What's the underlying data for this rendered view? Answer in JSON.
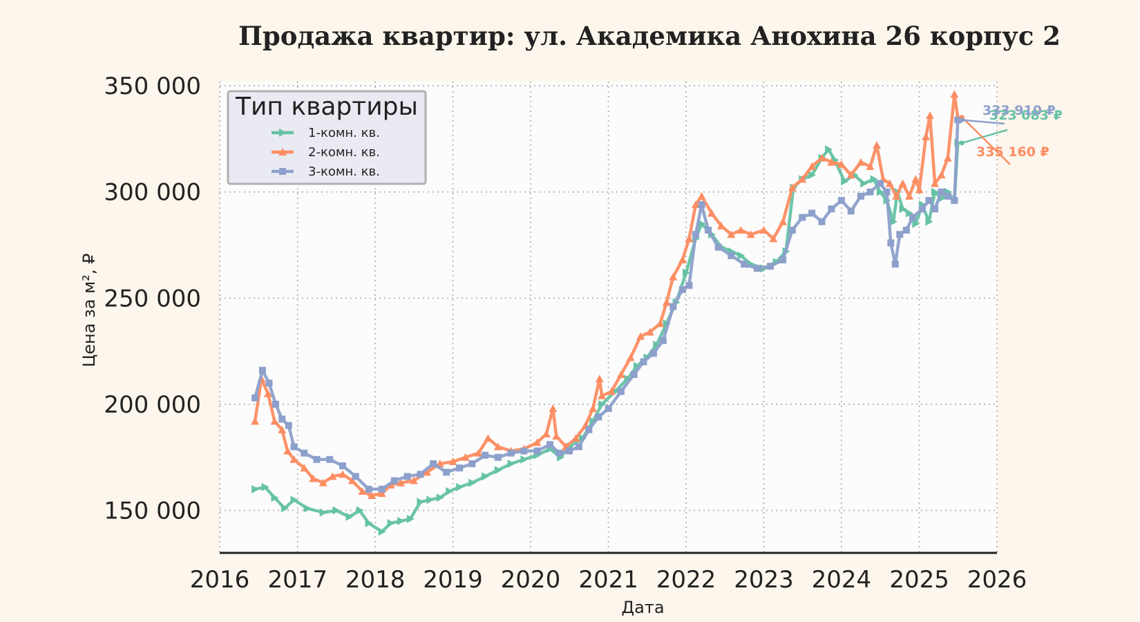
{
  "chart_data": {
    "type": "line",
    "title": "Продажа квартир: ул. Академика Анохина 26 корпус 2",
    "xlabel": "Дата",
    "ylabel": "Цена за м², ₽",
    "xlim": [
      "2016-01-01",
      "2026-01-01"
    ],
    "ylim": [
      130000,
      352000
    ],
    "xticks": [
      "2016",
      "2017",
      "2018",
      "2019",
      "2020",
      "2021",
      "2022",
      "2023",
      "2024",
      "2025",
      "2026"
    ],
    "yticks": [
      150000,
      200000,
      250000,
      300000,
      350000
    ],
    "ytick_labels": [
      "150 000",
      "200 000",
      "250 000",
      "300 000",
      "350 000"
    ],
    "grid": true,
    "legend": {
      "title": "Тип квартиры",
      "placement": "top-left"
    },
    "series": [
      {
        "name": "1-комн. кв.",
        "color": "#66c2a5",
        "marker": "triangle-right",
        "last_label": "323 083 ₽",
        "points": [
          [
            "2016-06-15",
            160000
          ],
          [
            "2016-08-01",
            161000
          ],
          [
            "2016-09-15",
            156000
          ],
          [
            "2016-11-01",
            151000
          ],
          [
            "2016-12-15",
            155000
          ],
          [
            "2017-02-15",
            151000
          ],
          [
            "2017-05-01",
            149000
          ],
          [
            "2017-07-01",
            150000
          ],
          [
            "2017-09-01",
            147000
          ],
          [
            "2017-10-20",
            150000
          ],
          [
            "2017-12-01",
            144000
          ],
          [
            "2018-02-01",
            140000
          ],
          [
            "2018-03-15",
            144000
          ],
          [
            "2018-05-01",
            145000
          ],
          [
            "2018-06-15",
            146000
          ],
          [
            "2018-08-01",
            154000
          ],
          [
            "2018-09-15",
            155000
          ],
          [
            "2018-11-01",
            156000
          ],
          [
            "2018-12-15",
            159000
          ],
          [
            "2019-02-01",
            161000
          ],
          [
            "2019-04-01",
            163000
          ],
          [
            "2019-06-01",
            166000
          ],
          [
            "2019-08-01",
            169000
          ],
          [
            "2019-10-01",
            172000
          ],
          [
            "2019-12-01",
            174000
          ],
          [
            "2020-02-01",
            176000
          ],
          [
            "2020-04-01",
            179000
          ],
          [
            "2020-05-20",
            175000
          ],
          [
            "2020-07-01",
            180000
          ],
          [
            "2020-09-01",
            184000
          ],
          [
            "2020-10-20",
            192000
          ],
          [
            "2020-12-01",
            200000
          ],
          [
            "2021-02-01",
            206000
          ],
          [
            "2021-04-01",
            212000
          ],
          [
            "2021-05-15",
            218000
          ],
          [
            "2021-07-01",
            222000
          ],
          [
            "2021-08-15",
            228000
          ],
          [
            "2021-10-01",
            238000
          ],
          [
            "2021-11-15",
            248000
          ],
          [
            "2022-01-01",
            262000
          ],
          [
            "2022-02-15",
            278000
          ],
          [
            "2022-03-15",
            285000
          ],
          [
            "2022-05-01",
            280000
          ],
          [
            "2022-06-15",
            274000
          ],
          [
            "2022-08-01",
            272000
          ],
          [
            "2022-09-15",
            270000
          ],
          [
            "2022-11-01",
            266000
          ],
          [
            "2023-01-01",
            264000
          ],
          [
            "2023-03-01",
            267000
          ],
          [
            "2023-04-15",
            272000
          ],
          [
            "2023-05-20",
            302000
          ],
          [
            "2023-07-01",
            306000
          ],
          [
            "2023-08-15",
            308000
          ],
          [
            "2023-10-01",
            316000
          ],
          [
            "2023-11-01",
            320000
          ],
          [
            "2023-12-01",
            315000
          ],
          [
            "2024-01-15",
            305000
          ],
          [
            "2024-03-01",
            308000
          ],
          [
            "2024-04-15",
            304000
          ],
          [
            "2024-06-01",
            306000
          ],
          [
            "2024-07-01",
            300000
          ],
          [
            "2024-08-01",
            296000
          ],
          [
            "2024-09-01",
            286000
          ],
          [
            "2024-09-20",
            300000
          ],
          [
            "2024-10-15",
            292000
          ],
          [
            "2024-11-15",
            290000
          ],
          [
            "2024-12-15",
            285000
          ],
          [
            "2025-01-15",
            294000
          ],
          [
            "2025-02-15",
            286000
          ],
          [
            "2025-03-15",
            300000
          ],
          [
            "2025-04-15",
            297000
          ],
          [
            "2025-05-15",
            300000
          ],
          [
            "2025-06-15",
            296000
          ],
          [
            "2025-07-01",
            323083
          ]
        ]
      },
      {
        "name": "2-комн. кв.",
        "color": "#fc8d62",
        "marker": "triangle-up",
        "last_label": "335 160 ₽",
        "points": [
          [
            "2016-06-15",
            192000
          ],
          [
            "2016-07-15",
            212000
          ],
          [
            "2016-08-15",
            205000
          ],
          [
            "2016-09-15",
            192000
          ],
          [
            "2016-10-20",
            188000
          ],
          [
            "2016-11-15",
            178000
          ],
          [
            "2016-12-15",
            174000
          ],
          [
            "2017-02-01",
            170000
          ],
          [
            "2017-03-15",
            165000
          ],
          [
            "2017-05-01",
            163000
          ],
          [
            "2017-06-15",
            166000
          ],
          [
            "2017-08-01",
            167000
          ],
          [
            "2017-09-15",
            164000
          ],
          [
            "2017-11-01",
            159000
          ],
          [
            "2017-12-15",
            157000
          ],
          [
            "2018-02-01",
            158000
          ],
          [
            "2018-03-15",
            162000
          ],
          [
            "2018-05-01",
            163000
          ],
          [
            "2018-07-01",
            164000
          ],
          [
            "2018-09-01",
            168000
          ],
          [
            "2018-11-01",
            172000
          ],
          [
            "2019-01-01",
            173000
          ],
          [
            "2019-03-01",
            175000
          ],
          [
            "2019-05-01",
            177000
          ],
          [
            "2019-06-15",
            184000
          ],
          [
            "2019-08-01",
            180000
          ],
          [
            "2019-10-01",
            178000
          ],
          [
            "2019-12-01",
            179000
          ],
          [
            "2020-02-01",
            182000
          ],
          [
            "2020-03-15",
            186000
          ],
          [
            "2020-04-15",
            198000
          ],
          [
            "2020-05-01",
            185000
          ],
          [
            "2020-06-15",
            180000
          ],
          [
            "2020-08-01",
            184000
          ],
          [
            "2020-09-15",
            190000
          ],
          [
            "2020-10-20",
            198000
          ],
          [
            "2020-11-20",
            212000
          ],
          [
            "2020-12-01",
            204000
          ],
          [
            "2021-01-15",
            206000
          ],
          [
            "2021-03-01",
            214000
          ],
          [
            "2021-04-15",
            222000
          ],
          [
            "2021-06-01",
            232000
          ],
          [
            "2021-07-15",
            234000
          ],
          [
            "2021-09-01",
            238000
          ],
          [
            "2021-10-01",
            248000
          ],
          [
            "2021-11-01",
            260000
          ],
          [
            "2021-12-15",
            268000
          ],
          [
            "2022-01-15",
            278000
          ],
          [
            "2022-02-15",
            294000
          ],
          [
            "2022-03-15",
            298000
          ],
          [
            "2022-05-01",
            290000
          ],
          [
            "2022-06-15",
            284000
          ],
          [
            "2022-08-01",
            280000
          ],
          [
            "2022-09-15",
            282000
          ],
          [
            "2022-11-01",
            280000
          ],
          [
            "2023-01-01",
            282000
          ],
          [
            "2023-02-15",
            278000
          ],
          [
            "2023-04-01",
            286000
          ],
          [
            "2023-05-15",
            302000
          ],
          [
            "2023-07-01",
            306000
          ],
          [
            "2023-08-15",
            312000
          ],
          [
            "2023-10-01",
            316000
          ],
          [
            "2023-11-15",
            314000
          ],
          [
            "2024-01-01",
            313000
          ],
          [
            "2024-02-15",
            308000
          ],
          [
            "2024-04-01",
            314000
          ],
          [
            "2024-05-15",
            312000
          ],
          [
            "2024-06-15",
            322000
          ],
          [
            "2024-07-15",
            306000
          ],
          [
            "2024-08-15",
            304000
          ],
          [
            "2024-09-15",
            298000
          ],
          [
            "2024-10-15",
            304000
          ],
          [
            "2024-11-15",
            298000
          ],
          [
            "2024-12-15",
            306000
          ],
          [
            "2025-01-01",
            301000
          ],
          [
            "2025-02-01",
            326000
          ],
          [
            "2025-02-20",
            336000
          ],
          [
            "2025-03-15",
            304000
          ],
          [
            "2025-04-15",
            308000
          ],
          [
            "2025-05-15",
            316000
          ],
          [
            "2025-06-15",
            346000
          ],
          [
            "2025-07-01",
            335160
          ]
        ]
      },
      {
        "name": "3-комн. кв.",
        "color": "#8da0cb",
        "marker": "square",
        "last_label": "333 910 ₽",
        "points": [
          [
            "2016-06-15",
            203000
          ],
          [
            "2016-07-20",
            216000
          ],
          [
            "2016-08-20",
            210000
          ],
          [
            "2016-09-20",
            200000
          ],
          [
            "2016-10-20",
            193000
          ],
          [
            "2016-11-20",
            190000
          ],
          [
            "2016-12-15",
            180000
          ],
          [
            "2017-02-01",
            177000
          ],
          [
            "2017-04-01",
            174000
          ],
          [
            "2017-06-01",
            174000
          ],
          [
            "2017-08-01",
            171000
          ],
          [
            "2017-10-01",
            166000
          ],
          [
            "2017-12-01",
            160000
          ],
          [
            "2018-02-01",
            160000
          ],
          [
            "2018-04-01",
            164000
          ],
          [
            "2018-06-01",
            166000
          ],
          [
            "2018-08-01",
            167000
          ],
          [
            "2018-10-01",
            172000
          ],
          [
            "2018-12-01",
            168000
          ],
          [
            "2019-02-01",
            170000
          ],
          [
            "2019-04-01",
            172000
          ],
          [
            "2019-06-01",
            176000
          ],
          [
            "2019-08-01",
            175000
          ],
          [
            "2019-10-01",
            177000
          ],
          [
            "2019-12-01",
            178000
          ],
          [
            "2020-02-01",
            178000
          ],
          [
            "2020-04-01",
            181000
          ],
          [
            "2020-05-15",
            177000
          ],
          [
            "2020-07-01",
            178000
          ],
          [
            "2020-08-15",
            180000
          ],
          [
            "2020-10-01",
            188000
          ],
          [
            "2020-11-15",
            194000
          ],
          [
            "2021-01-01",
            198000
          ],
          [
            "2021-03-01",
            206000
          ],
          [
            "2021-05-01",
            214000
          ],
          [
            "2021-06-15",
            220000
          ],
          [
            "2021-08-01",
            224000
          ],
          [
            "2021-09-15",
            230000
          ],
          [
            "2021-11-01",
            246000
          ],
          [
            "2021-12-15",
            254000
          ],
          [
            "2022-01-15",
            256000
          ],
          [
            "2022-02-15",
            280000
          ],
          [
            "2022-03-15",
            294000
          ],
          [
            "2022-04-15",
            282000
          ],
          [
            "2022-06-01",
            274000
          ],
          [
            "2022-08-01",
            270000
          ],
          [
            "2022-10-01",
            266000
          ],
          [
            "2022-12-01",
            264000
          ],
          [
            "2023-02-01",
            265000
          ],
          [
            "2023-04-01",
            268000
          ],
          [
            "2023-05-15",
            282000
          ],
          [
            "2023-07-01",
            288000
          ],
          [
            "2023-08-15",
            290000
          ],
          [
            "2023-10-01",
            286000
          ],
          [
            "2023-11-15",
            292000
          ],
          [
            "2024-01-01",
            296000
          ],
          [
            "2024-02-15",
            291000
          ],
          [
            "2024-04-01",
            298000
          ],
          [
            "2024-05-15",
            300000
          ],
          [
            "2024-07-01",
            304000
          ],
          [
            "2024-08-01",
            300000
          ],
          [
            "2024-08-20",
            276000
          ],
          [
            "2024-09-10",
            266000
          ],
          [
            "2024-10-01",
            280000
          ],
          [
            "2024-11-01",
            282000
          ],
          [
            "2024-12-01",
            288000
          ],
          [
            "2025-01-15",
            292000
          ],
          [
            "2025-02-15",
            296000
          ],
          [
            "2025-03-15",
            292000
          ],
          [
            "2025-04-15",
            300000
          ],
          [
            "2025-05-15",
            298000
          ],
          [
            "2025-06-15",
            296000
          ],
          [
            "2025-07-01",
            333910
          ]
        ]
      }
    ]
  }
}
